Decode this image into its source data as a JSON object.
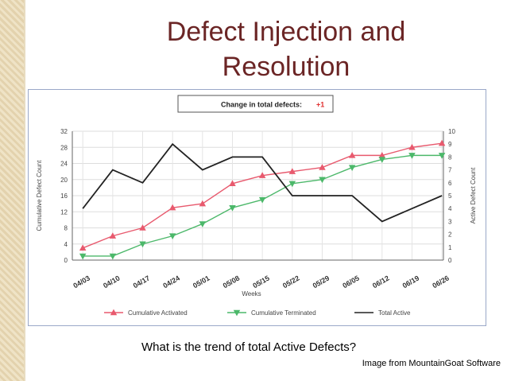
{
  "slide": {
    "title_line1": "Defect Injection and",
    "title_line2": "Resolution",
    "question": "What is the trend of total Active Defects?",
    "credit": "Image from MountainGoat Software"
  },
  "chart_data": {
    "type": "line",
    "title": "Change in total defects:",
    "title_value": "+1",
    "xlabel": "Weeks",
    "ylabel_left": "Cumulative Defect Count",
    "ylabel_right": "Active Defect Count",
    "categories": [
      "04/03",
      "04/10",
      "04/17",
      "04/24",
      "05/01",
      "05/08",
      "05/15",
      "05/22",
      "05/29",
      "06/05",
      "06/12",
      "06/19",
      "06/26"
    ],
    "y_left": {
      "min": 0,
      "max": 32,
      "ticks": [
        0,
        4,
        8,
        12,
        16,
        20,
        24,
        28,
        32
      ]
    },
    "y_right": {
      "min": 0,
      "max": 10,
      "ticks": [
        0,
        1,
        2,
        3,
        4,
        5,
        6,
        7,
        8,
        9,
        10
      ]
    },
    "grid": true,
    "legend_position": "bottom",
    "series": [
      {
        "name": "Cumulative Activated",
        "axis": "left",
        "color": "#e85a6e",
        "marker": "triangle-up",
        "values": [
          3,
          6,
          8,
          13,
          14,
          19,
          21,
          22,
          23,
          26,
          26,
          28,
          29
        ]
      },
      {
        "name": "Cumulative Terminated",
        "axis": "left",
        "color": "#4cb86a",
        "marker": "triangle-down",
        "values": [
          1,
          1,
          4,
          6,
          9,
          13,
          15,
          19,
          20,
          23,
          25,
          26,
          26
        ]
      },
      {
        "name": "Total Active",
        "axis": "right",
        "color": "#222222",
        "marker": "none",
        "values": [
          4,
          7,
          6,
          9,
          7,
          8,
          8,
          5,
          5,
          5,
          3,
          4,
          5
        ]
      }
    ]
  }
}
